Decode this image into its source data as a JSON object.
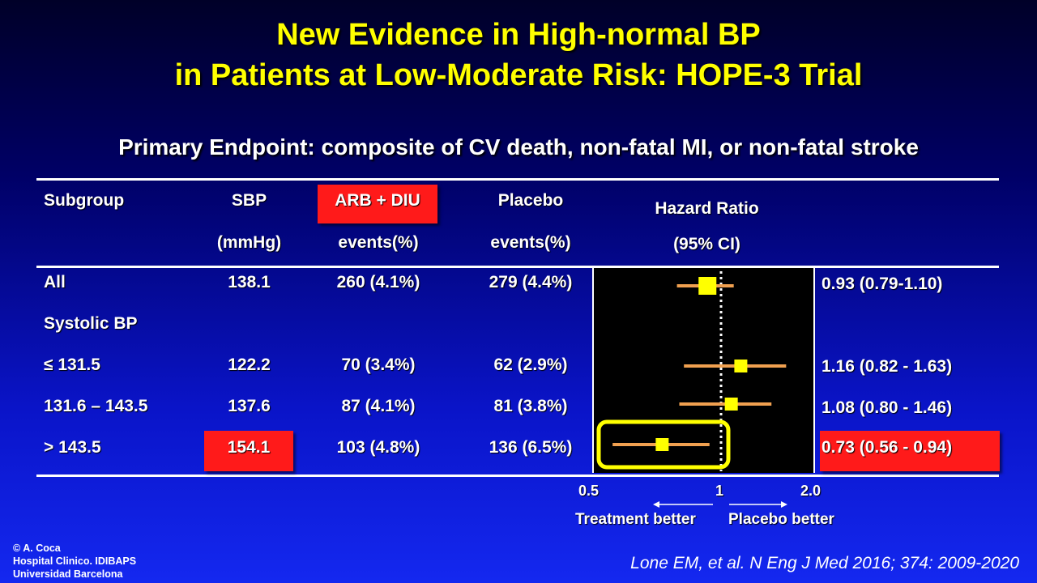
{
  "title_line1": "New Evidence in High-normal BP",
  "title_line2": "in Patients at Low-Moderate Risk: HOPE-3 Trial",
  "subtitle": "Primary Endpoint: composite of CV death, non-fatal MI, or non-fatal stroke",
  "headers": {
    "subgroup": "Subgroup",
    "sbp": "SBP",
    "sbp_unit": "(mmHg)",
    "arb": "ARB + DIU",
    "arb_unit": "events(%)",
    "placebo": "Placebo",
    "placebo_unit": "events(%)",
    "hr": "Hazard Ratio",
    "hr_unit": "(95% CI)"
  },
  "rows": [
    {
      "label": "All",
      "sbp": "138.1",
      "arb": "260 (4.1%)",
      "placebo": "279 (4.4%)",
      "hr_text": "0.93 (0.79-1.10)"
    },
    {
      "label": "Systolic BP",
      "sbp": "",
      "arb": "",
      "placebo": "",
      "hr_text": ""
    },
    {
      "label": "≤ 131.5",
      "sbp": "122.2",
      "arb": "70 (3.4%)",
      "placebo": "62 (2.9%)",
      "hr_text": "1.16 (0.82 - 1.63)"
    },
    {
      "label": "131.6 – 143.5",
      "sbp": "137.6",
      "arb": "87 (4.1%)",
      "placebo": "81 (3.8%)",
      "hr_text": "1.08 (0.80 - 1.46)"
    },
    {
      "label": "> 143.5",
      "sbp": "154.1",
      "arb": "103 (4.8%)",
      "placebo": "136 (6.5%)",
      "hr_text": "0.73 (0.56 - 0.94)"
    }
  ],
  "axis": {
    "tick_05": "0.5",
    "tick_1": "1",
    "tick_2": "2.0",
    "left_label": "Treatment better",
    "right_label": "Placebo better"
  },
  "credit": {
    "line1": "© A. Coca",
    "line2": "Hospital Clinico. IDIBAPS",
    "line3": "Universidad Barcelona"
  },
  "citation": "Lone EM, et al. N Eng J Med 2016; 374: 2009-2020",
  "colors": {
    "title": "#ffff00",
    "highlight_red": "#ff1a1a",
    "ci_line": "#f0a050",
    "point": "#ffff00",
    "plot_bg": "#000000"
  },
  "chart_data": {
    "type": "forest",
    "scale": "log",
    "xlim": [
      0.5,
      2.0
    ],
    "reference_line": 1,
    "ticks": [
      0.5,
      1,
      2.0
    ],
    "points": [
      {
        "row": 0,
        "hr": 0.93,
        "lo": 0.79,
        "hi": 1.1
      },
      {
        "row": 2,
        "hr": 1.16,
        "lo": 0.82,
        "hi": 1.63
      },
      {
        "row": 3,
        "hr": 1.08,
        "lo": 0.8,
        "hi": 1.46
      },
      {
        "row": 4,
        "hr": 0.73,
        "lo": 0.56,
        "hi": 0.94
      }
    ],
    "highlight_row": 4
  }
}
